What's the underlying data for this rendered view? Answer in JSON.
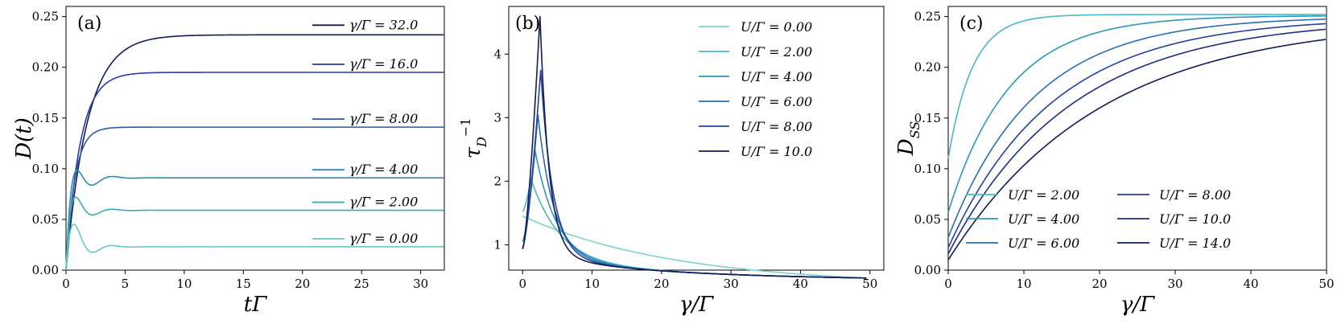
{
  "figure": {
    "panel_labels": [
      "(a)",
      "(b)",
      "(c)"
    ]
  },
  "chart_data": [
    {
      "type": "line",
      "panel_label": "(a)",
      "xlabel": "tΓ",
      "ylabel": "D(t)",
      "xlim": [
        0,
        32
      ],
      "ylim": [
        0,
        0.26
      ],
      "xticks": [
        0,
        5,
        10,
        15,
        20,
        25,
        30
      ],
      "yticks": [
        0.0,
        0.05,
        0.1,
        0.15,
        0.2,
        0.25
      ],
      "ytick_labels": [
        "0.00",
        "0.05",
        "0.10",
        "0.15",
        "0.20",
        "0.25"
      ],
      "legend_placement": "inline-right",
      "series": [
        {
          "name": "γ/Γ = 32.0",
          "color": "#141c55",
          "steady": 0.232
        },
        {
          "name": "γ/Γ = 16.0",
          "color": "#2a3aa0",
          "steady": 0.195
        },
        {
          "name": "γ/Γ = 8.00",
          "color": "#2d59a8",
          "steady": 0.141
        },
        {
          "name": "γ/Γ = 4.00",
          "color": "#2a8bb5",
          "steady": 0.091
        },
        {
          "name": "γ/Γ = 2.00",
          "color": "#3aaab5",
          "steady": 0.059
        },
        {
          "name": "γ/Γ = 0.00",
          "color": "#66c9c2",
          "steady": 0.023
        }
      ]
    },
    {
      "type": "line",
      "panel_label": "(b)",
      "xlabel": "γ/Γ",
      "ylabel": "τ_D^-1",
      "xlim": [
        -2,
        52
      ],
      "ylim": [
        0.6,
        4.75
      ],
      "xticks": [
        0,
        10,
        20,
        30,
        40,
        50
      ],
      "yticks": [
        1,
        2,
        3,
        4
      ],
      "legend_placement": "upper-right",
      "series": [
        {
          "name": "U/Γ = 0.00",
          "color": "#7fd3c8",
          "peak_x": 0.0,
          "peak_y": 1.45
        },
        {
          "name": "U/Γ = 2.00",
          "color": "#4ab7c4",
          "peak_x": 1.2,
          "peak_y": 2.03
        },
        {
          "name": "U/Γ = 4.00",
          "color": "#2f97b8",
          "peak_x": 1.8,
          "peak_y": 2.48
        },
        {
          "name": "U/Γ = 6.00",
          "color": "#2a6db0",
          "peak_x": 2.2,
          "peak_y": 3.05
        },
        {
          "name": "U/Γ = 8.00",
          "color": "#24429b",
          "peak_x": 2.6,
          "peak_y": 3.75
        },
        {
          "name": "U/Γ = 10.0",
          "color": "#141c55",
          "peak_x": 2.5,
          "peak_y": 4.6
        }
      ]
    },
    {
      "type": "line",
      "panel_label": "(c)",
      "xlabel": "γ/Γ",
      "ylabel": "D_SS",
      "xlim": [
        0,
        50
      ],
      "ylim": [
        0,
        0.26
      ],
      "xticks": [
        0,
        10,
        20,
        30,
        40,
        50
      ],
      "yticks": [
        0.0,
        0.05,
        0.1,
        0.15,
        0.2,
        0.25
      ],
      "ytick_labels": [
        "0.00",
        "0.05",
        "0.10",
        "0.15",
        "0.20",
        "0.25"
      ],
      "legend_placement": "lower-right",
      "series": [
        {
          "name": "U/Γ = 2.00",
          "color": "#4ab7c4",
          "y0": 0.11,
          "limit": 0.252,
          "scale": 3.5
        },
        {
          "name": "U/Γ = 4.00",
          "color": "#2f97b8",
          "y0": 0.057,
          "limit": 0.251,
          "scale": 7
        },
        {
          "name": "U/Γ = 6.00",
          "color": "#2a6db0",
          "y0": 0.032,
          "limit": 0.25,
          "scale": 10
        },
        {
          "name": "U/Γ = 8.00",
          "color": "#24429b",
          "y0": 0.022,
          "limit": 0.249,
          "scale": 12.5
        },
        {
          "name": "U/Γ = 10.0",
          "color": "#1e2d80",
          "y0": 0.016,
          "limit": 0.248,
          "scale": 15
        },
        {
          "name": "U/Γ = 14.0",
          "color": "#141c55",
          "y0": 0.01,
          "limit": 0.247,
          "scale": 19
        }
      ]
    }
  ]
}
